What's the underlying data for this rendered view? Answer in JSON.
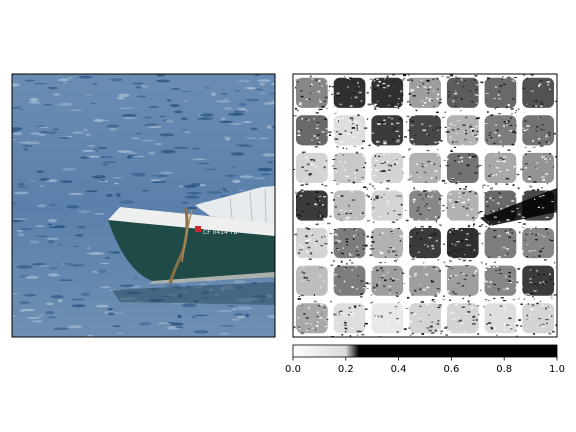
{
  "figure": {
    "left_panel": {
      "content": "photo of a dark green rowboat with a white gunwale and a registration number on its side, moored by a rope on rippling blue water"
    },
    "right_panel": {
      "content": "grayscale attribution / saliency mask with a blocky grid texture"
    },
    "colorbar": {
      "colormap": "grays (white to black)",
      "range": [
        0.0,
        1.0
      ],
      "ticks": [
        "0.0",
        "0.2",
        "0.4",
        "0.6",
        "0.8",
        "1.0"
      ]
    },
    "boat_registration": "CF 0414 TB"
  },
  "colors": {
    "water_light": "#6f8fb0",
    "water_mid": "#4f75a0",
    "water_dark": "#244f7e",
    "hull_green": "#1f4a45",
    "gunwale_white": "#f2f2f2",
    "rope": "#8a7045"
  }
}
